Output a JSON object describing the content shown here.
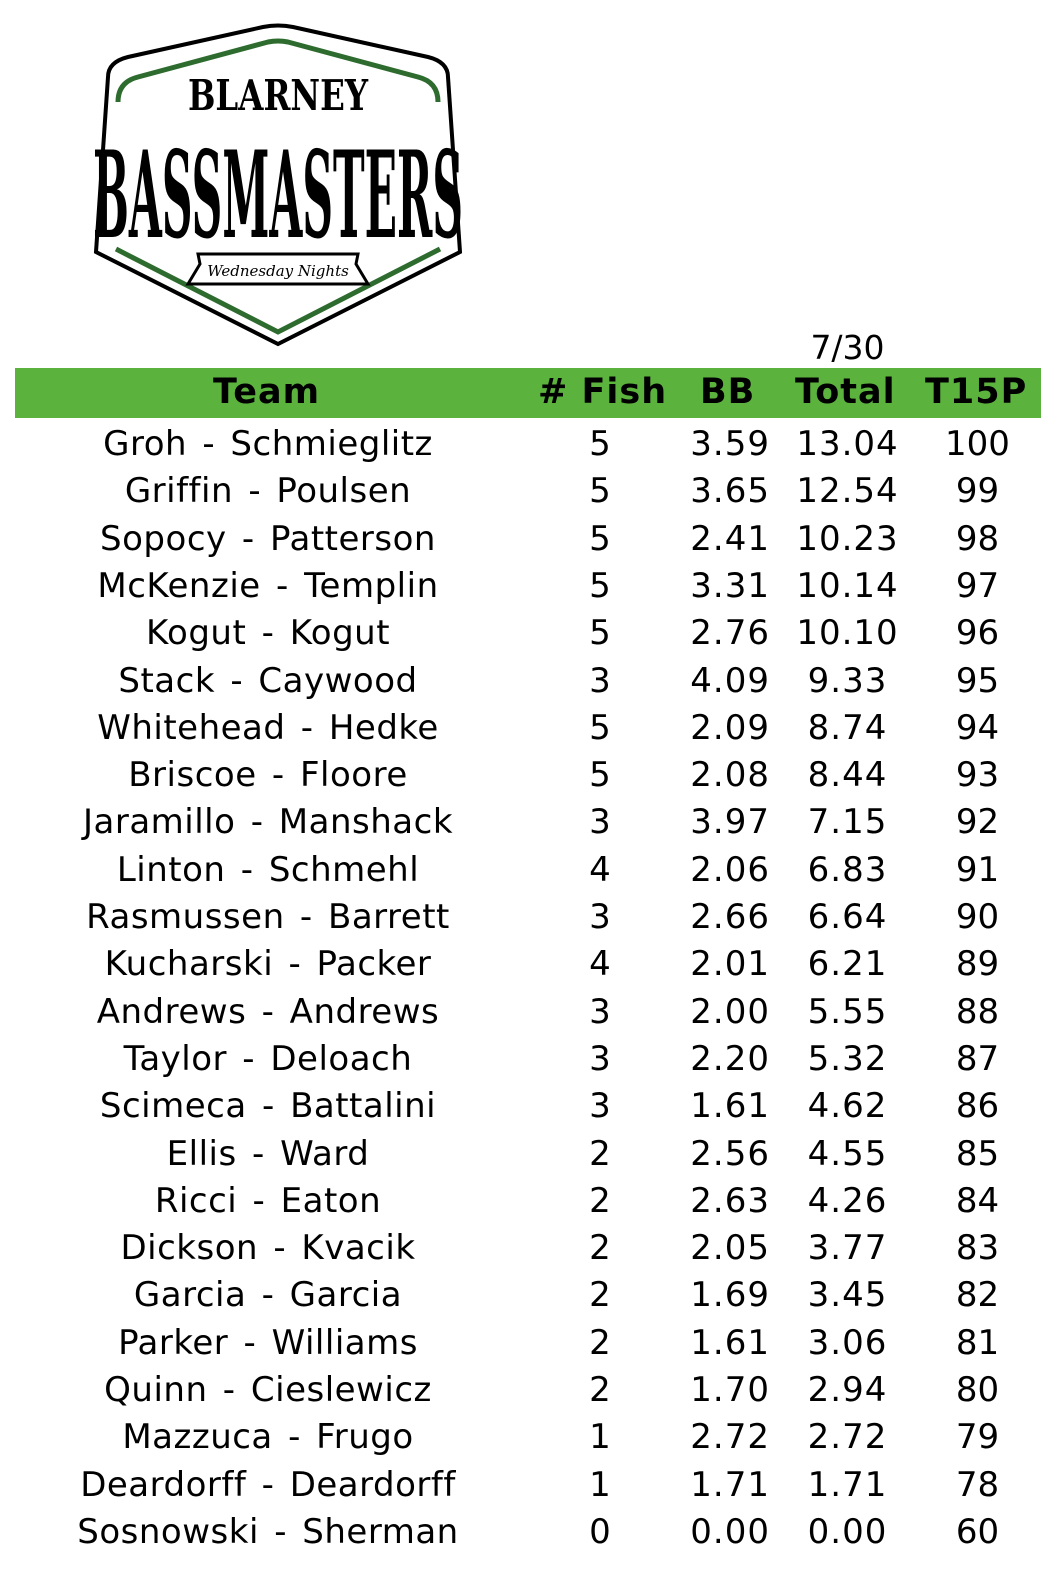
{
  "logo": {
    "line1": "BLARNEY",
    "line2": "BASSMASTERS",
    "banner": "Wednesday Nights",
    "colors": {
      "green": "#2e6b2e",
      "black": "#000000"
    }
  },
  "date": "7/30",
  "header_color": "#5bb33e",
  "columns": {
    "team": "Team",
    "fish": "# Fish",
    "bb": "BB",
    "total": "Total",
    "points": "T15P"
  },
  "rows": [
    {
      "team": "Groh - Schmieglitz",
      "fish": "5",
      "bb": "3.59",
      "total": "13.04",
      "points": "100"
    },
    {
      "team": "Griffin - Poulsen",
      "fish": "5",
      "bb": "3.65",
      "total": "12.54",
      "points": "99"
    },
    {
      "team": "Sopocy - Patterson",
      "fish": "5",
      "bb": "2.41",
      "total": "10.23",
      "points": "98"
    },
    {
      "team": "McKenzie - Templin",
      "fish": "5",
      "bb": "3.31",
      "total": "10.14",
      "points": "97"
    },
    {
      "team": "Kogut - Kogut",
      "fish": "5",
      "bb": "2.76",
      "total": "10.10",
      "points": "96"
    },
    {
      "team": "Stack - Caywood",
      "fish": "3",
      "bb": "4.09",
      "total": "9.33",
      "points": "95"
    },
    {
      "team": "Whitehead - Hedke",
      "fish": "5",
      "bb": "2.09",
      "total": "8.74",
      "points": "94"
    },
    {
      "team": "Briscoe - Floore",
      "fish": "5",
      "bb": "2.08",
      "total": "8.44",
      "points": "93"
    },
    {
      "team": "Jaramillo - Manshack",
      "fish": "3",
      "bb": "3.97",
      "total": "7.15",
      "points": "92"
    },
    {
      "team": "Linton - Schmehl",
      "fish": "4",
      "bb": "2.06",
      "total": "6.83",
      "points": "91"
    },
    {
      "team": "Rasmussen - Barrett",
      "fish": "3",
      "bb": "2.66",
      "total": "6.64",
      "points": "90"
    },
    {
      "team": "Kucharski - Packer",
      "fish": "4",
      "bb": "2.01",
      "total": "6.21",
      "points": "89"
    },
    {
      "team": "Andrews - Andrews",
      "fish": "3",
      "bb": "2.00",
      "total": "5.55",
      "points": "88"
    },
    {
      "team": "Taylor - Deloach",
      "fish": "3",
      "bb": "2.20",
      "total": "5.32",
      "points": "87"
    },
    {
      "team": "Scimeca - Battalini",
      "fish": "3",
      "bb": "1.61",
      "total": "4.62",
      "points": "86"
    },
    {
      "team": "Ellis - Ward",
      "fish": "2",
      "bb": "2.56",
      "total": "4.55",
      "points": "85"
    },
    {
      "team": "Ricci - Eaton",
      "fish": "2",
      "bb": "2.63",
      "total": "4.26",
      "points": "84"
    },
    {
      "team": "Dickson - Kvacik",
      "fish": "2",
      "bb": "2.05",
      "total": "3.77",
      "points": "83"
    },
    {
      "team": "Garcia - Garcia",
      "fish": "2",
      "bb": "1.69",
      "total": "3.45",
      "points": "82"
    },
    {
      "team": "Parker - Williams",
      "fish": "2",
      "bb": "1.61",
      "total": "3.06",
      "points": "81"
    },
    {
      "team": "Quinn - Cieslewicz",
      "fish": "2",
      "bb": "1.70",
      "total": "2.94",
      "points": "80"
    },
    {
      "team": "Mazzuca - Frugo",
      "fish": "1",
      "bb": "2.72",
      "total": "2.72",
      "points": "79"
    },
    {
      "team": "Deardorff - Deardorff",
      "fish": "1",
      "bb": "1.71",
      "total": "1.71",
      "points": "78"
    },
    {
      "team": "Sosnowski - Sherman",
      "fish": "0",
      "bb": "0.00",
      "total": "0.00",
      "points": "60"
    }
  ]
}
